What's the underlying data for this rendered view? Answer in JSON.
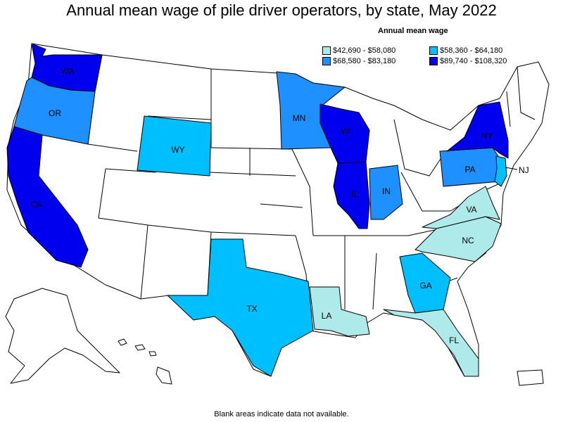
{
  "title": "Annual mean wage of pile driver operators, by state, May 2022",
  "legend": {
    "title": "Annual mean wage",
    "items": [
      {
        "label": "$42,690 - $58,080",
        "color": "#aeeaea"
      },
      {
        "label": "$58,360 - $64,180",
        "color": "#00bfff"
      },
      {
        "label": "$68,580 - $83,180",
        "color": "#1e90ff"
      },
      {
        "label": "$89,740 - $108,320",
        "color": "#0000ee"
      }
    ]
  },
  "footnote": "Blank areas indicate data not available.",
  "states": {
    "WA": {
      "label": "WA",
      "color": "#0000ee"
    },
    "OR": {
      "label": "OR",
      "color": "#1e90ff"
    },
    "CA": {
      "label": "CA",
      "color": "#0000ee"
    },
    "WY": {
      "label": "WY",
      "color": "#00bfff"
    },
    "MN": {
      "label": "MN",
      "color": "#1e90ff"
    },
    "WI": {
      "label": "WI",
      "color": "#0000ee"
    },
    "IL": {
      "label": "IL",
      "color": "#0000ee"
    },
    "IN": {
      "label": "IN",
      "color": "#1e90ff"
    },
    "TX": {
      "label": "TX",
      "color": "#00bfff"
    },
    "LA": {
      "label": "LA",
      "color": "#aeeaea"
    },
    "GA": {
      "label": "GA",
      "color": "#00bfff"
    },
    "FL": {
      "label": "FL",
      "color": "#aeeaea"
    },
    "NC": {
      "label": "NC",
      "color": "#aeeaea"
    },
    "VA": {
      "label": "VA",
      "color": "#aeeaea"
    },
    "PA": {
      "label": "PA",
      "color": "#1e90ff"
    },
    "NY": {
      "label": "NY",
      "color": "#0000ee"
    },
    "NJ": {
      "label": "NJ",
      "color": "#00bfff"
    }
  }
}
